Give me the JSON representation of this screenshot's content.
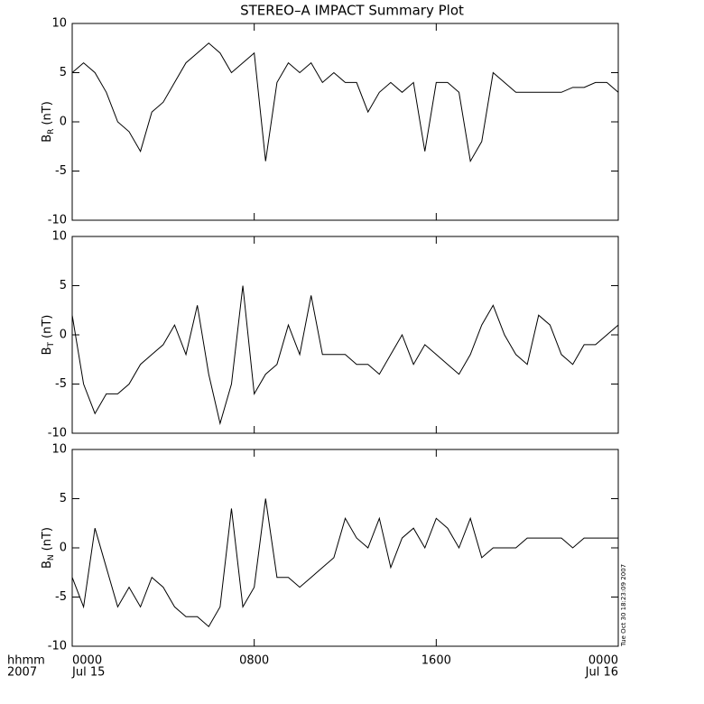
{
  "title": "STEREO–A IMPACT Summary Plot",
  "x_unit_label": "hhmm",
  "x_year_label": "2007",
  "timestamp": "Tue Oct 30 18:23:09 2007",
  "chart_data": [
    {
      "type": "line",
      "ylabel": "B",
      "ylabel_sub": "R",
      "ylabel_unit": "(nT)",
      "xlim": [
        0,
        24
      ],
      "xticks": [
        0,
        8,
        16,
        24
      ],
      "xtick_labels": false,
      "ylim": [
        -10,
        10
      ],
      "yticks": [
        -10,
        -5,
        0,
        5,
        10
      ],
      "series": [
        {
          "color": "#000000",
          "x": [
            0,
            0.5,
            1,
            1.5,
            2,
            2.5,
            3,
            3.5,
            4,
            4.5,
            5,
            5.5,
            6,
            6.5,
            7,
            7.5,
            8,
            8.5,
            9,
            9.5,
            10,
            10.5,
            11,
            11.5,
            12,
            12.5,
            13,
            13.5,
            14,
            14.5,
            15,
            15.5,
            16,
            16.5,
            17,
            17.5,
            18,
            18.5,
            19,
            19.5,
            20,
            20.5,
            21,
            21.5,
            22,
            22.5,
            23,
            23.5,
            24
          ],
          "values": [
            5,
            6,
            5,
            3,
            0,
            -1,
            -3,
            1,
            2,
            4,
            6,
            7,
            8,
            7,
            5,
            6,
            7,
            -4,
            4,
            6,
            5,
            6,
            4,
            5,
            4,
            4,
            1,
            3,
            4,
            3,
            4,
            -3,
            4,
            4,
            3,
            -4,
            -2,
            5,
            4,
            3,
            3,
            3,
            3,
            3,
            3.5,
            3.5,
            4,
            4,
            3
          ]
        }
      ]
    },
    {
      "type": "line",
      "ylabel": "B",
      "ylabel_sub": "T",
      "ylabel_unit": "(nT)",
      "xlim": [
        0,
        24
      ],
      "xticks": [
        0,
        8,
        16,
        24
      ],
      "xtick_labels": false,
      "ylim": [
        -10,
        10
      ],
      "yticks": [
        -10,
        -5,
        0,
        5,
        10
      ],
      "series": [
        {
          "color": "#000000",
          "x": [
            0,
            0.5,
            1,
            1.5,
            2,
            2.5,
            3,
            3.5,
            4,
            4.5,
            5,
            5.5,
            6,
            6.5,
            7,
            7.5,
            8,
            8.5,
            9,
            9.5,
            10,
            10.5,
            11,
            11.5,
            12,
            12.5,
            13,
            13.5,
            14,
            14.5,
            15,
            15.5,
            16,
            16.5,
            17,
            17.5,
            18,
            18.5,
            19,
            19.5,
            20,
            20.5,
            21,
            21.5,
            22,
            22.5,
            23,
            23.5,
            24
          ],
          "values": [
            2,
            -5,
            -8,
            -6,
            -6,
            -5,
            -3,
            -2,
            -1,
            1,
            -2,
            3,
            -4,
            -9,
            -5,
            5,
            -6,
            -4,
            -3,
            1,
            -2,
            4,
            -2,
            -2,
            -2,
            -3,
            -3,
            -4,
            -2,
            0,
            -3,
            -1,
            -2,
            -3,
            -4,
            -2,
            1,
            3,
            0,
            -2,
            -3,
            2,
            1,
            -2,
            -3,
            -1,
            -1,
            0,
            1
          ]
        }
      ]
    },
    {
      "type": "line",
      "ylabel": "B",
      "ylabel_sub": "N",
      "ylabel_unit": "(nT)",
      "xlim": [
        0,
        24
      ],
      "xticks": [
        {
          "value": 0,
          "label": "0000"
        },
        {
          "value": 8,
          "label": "0800"
        },
        {
          "value": 16,
          "label": "1600"
        },
        {
          "value": 24,
          "label": "0000"
        }
      ],
      "xtick_labels": true,
      "xtick_dates": [
        {
          "value": 0,
          "label": "Jul 15"
        },
        {
          "value": 24,
          "label": "Jul 16"
        }
      ],
      "ylim": [
        -10,
        10
      ],
      "yticks": [
        -10,
        -5,
        0,
        5,
        10
      ],
      "series": [
        {
          "color": "#000000",
          "x": [
            0,
            0.5,
            1,
            1.5,
            2,
            2.5,
            3,
            3.5,
            4,
            4.5,
            5,
            5.5,
            6,
            6.5,
            7,
            7.5,
            8,
            8.5,
            9,
            9.5,
            10,
            10.5,
            11,
            11.5,
            12,
            12.5,
            13,
            13.5,
            14,
            14.5,
            15,
            15.5,
            16,
            16.5,
            17,
            17.5,
            18,
            18.5,
            19,
            19.5,
            20,
            20.5,
            21,
            21.5,
            22,
            22.5,
            23,
            23.5,
            24
          ],
          "values": [
            -3,
            -6,
            2,
            -2,
            -6,
            -4,
            -6,
            -3,
            -4,
            -6,
            -7,
            -7,
            -8,
            -6,
            4,
            -6,
            -4,
            5,
            -3,
            -3,
            -4,
            -3,
            -2,
            -1,
            3,
            1,
            0,
            3,
            -2,
            1,
            2,
            0,
            3,
            2,
            0,
            3,
            -1,
            0,
            0,
            0,
            1,
            1,
            1,
            1,
            0,
            1,
            1,
            1,
            1
          ]
        }
      ]
    }
  ]
}
